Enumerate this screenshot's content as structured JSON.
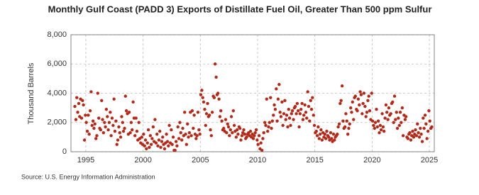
{
  "chart_data": {
    "type": "scatter",
    "title": "Monthly Gulf Coast (PADD 3) Exports of Distillate Fuel Oil, Greater Than 500 ppm Sulfur",
    "y_label": "Thousand Barrels",
    "source": "Source: U.S. Energy Information Administration",
    "color": "#b22a1a",
    "grid": true,
    "xlim": [
      1993.7,
      2025.43
    ],
    "ylim": [
      0,
      8000
    ],
    "xticks": [
      1995,
      2000,
      2005,
      2010,
      2015,
      2020,
      2025
    ],
    "yticks": [
      0,
      {
        "value": 2000,
        "label": "2,000"
      },
      {
        "value": 4000,
        "label": "4,000"
      },
      {
        "value": 6000,
        "label": "6,000"
      },
      {
        "value": 8000,
        "label": "8,000"
      }
    ],
    "x": [
      1994.04,
      1994.13,
      1994.21,
      1994.29,
      1994.38,
      1994.46,
      1994.54,
      1994.63,
      1994.71,
      1994.79,
      1994.88,
      1994.96,
      1995.04,
      1995.13,
      1995.21,
      1995.29,
      1995.38,
      1995.46,
      1995.54,
      1995.63,
      1995.71,
      1995.79,
      1995.88,
      1995.96,
      1996.04,
      1996.13,
      1996.21,
      1996.29,
      1996.38,
      1996.46,
      1996.54,
      1996.63,
      1996.71,
      1996.79,
      1996.88,
      1996.96,
      1997.04,
      1997.13,
      1997.21,
      1997.29,
      1997.38,
      1997.46,
      1997.54,
      1997.63,
      1997.71,
      1997.79,
      1997.88,
      1997.96,
      1998.04,
      1998.13,
      1998.21,
      1998.29,
      1998.38,
      1998.46,
      1998.54,
      1998.63,
      1998.71,
      1998.79,
      1998.88,
      1998.96,
      1999.04,
      1999.13,
      1999.21,
      1999.29,
      1999.38,
      1999.46,
      1999.54,
      1999.63,
      1999.71,
      1999.79,
      1999.88,
      1999.96,
      2000.04,
      2000.13,
      2000.21,
      2000.29,
      2000.38,
      2000.46,
      2000.54,
      2000.63,
      2000.71,
      2000.79,
      2000.88,
      2000.96,
      2001.04,
      2001.13,
      2001.21,
      2001.29,
      2001.38,
      2001.46,
      2001.54,
      2001.63,
      2001.71,
      2001.79,
      2001.88,
      2001.96,
      2002.04,
      2002.13,
      2002.21,
      2002.29,
      2002.38,
      2002.46,
      2002.54,
      2002.63,
      2002.71,
      2002.79,
      2002.88,
      2002.96,
      2003.04,
      2003.13,
      2003.21,
      2003.29,
      2003.38,
      2003.46,
      2003.54,
      2003.63,
      2003.71,
      2003.79,
      2003.88,
      2003.96,
      2004.04,
      2004.13,
      2004.21,
      2004.29,
      2004.38,
      2004.46,
      2004.54,
      2004.63,
      2004.71,
      2004.79,
      2004.88,
      2004.96,
      2005.04,
      2005.13,
      2005.21,
      2005.29,
      2005.38,
      2005.46,
      2005.54,
      2005.63,
      2005.71,
      2005.79,
      2005.88,
      2005.96,
      2006.04,
      2006.13,
      2006.21,
      2006.29,
      2006.38,
      2006.46,
      2006.54,
      2006.63,
      2006.71,
      2006.79,
      2006.88,
      2006.96,
      2007.04,
      2007.13,
      2007.21,
      2007.29,
      2007.38,
      2007.46,
      2007.54,
      2007.63,
      2007.71,
      2007.79,
      2007.88,
      2007.96,
      2008.04,
      2008.13,
      2008.21,
      2008.29,
      2008.38,
      2008.46,
      2008.54,
      2008.63,
      2008.71,
      2008.79,
      2008.88,
      2008.96,
      2009.04,
      2009.13,
      2009.21,
      2009.29,
      2009.38,
      2009.46,
      2009.54,
      2009.63,
      2009.71,
      2009.79,
      2009.88,
      2009.96,
      2010.04,
      2010.13,
      2010.21,
      2010.29,
      2010.38,
      2010.46,
      2010.54,
      2010.63,
      2010.71,
      2010.79,
      2010.88,
      2010.96,
      2011.04,
      2011.13,
      2011.21,
      2011.29,
      2011.38,
      2011.46,
      2011.54,
      2011.63,
      2011.71,
      2011.79,
      2011.88,
      2011.96,
      2012.04,
      2012.13,
      2012.21,
      2012.29,
      2012.38,
      2012.46,
      2012.54,
      2012.63,
      2012.71,
      2012.79,
      2012.88,
      2012.96,
      2013.04,
      2013.13,
      2013.21,
      2013.29,
      2013.38,
      2013.46,
      2013.54,
      2013.63,
      2013.71,
      2013.79,
      2013.88,
      2013.96,
      2014.04,
      2014.13,
      2014.21,
      2014.29,
      2014.38,
      2014.46,
      2014.54,
      2014.63,
      2014.71,
      2014.79,
      2014.88,
      2014.96,
      2015.04,
      2015.13,
      2015.21,
      2015.29,
      2015.38,
      2015.46,
      2015.54,
      2015.63,
      2015.71,
      2015.79,
      2015.88,
      2015.96,
      2016.04,
      2016.13,
      2016.21,
      2016.29,
      2016.38,
      2016.46,
      2016.54,
      2016.63,
      2016.71,
      2016.79,
      2016.88,
      2016.96,
      2017.04,
      2017.13,
      2017.21,
      2017.29,
      2017.38,
      2017.46,
      2017.54,
      2017.63,
      2017.71,
      2017.79,
      2017.88,
      2017.96,
      2018.04,
      2018.13,
      2018.21,
      2018.29,
      2018.38,
      2018.46,
      2018.54,
      2018.63,
      2018.71,
      2018.79,
      2018.88,
      2018.96,
      2019.04,
      2019.13,
      2019.21,
      2019.29,
      2019.38,
      2019.46,
      2019.54,
      2019.63,
      2019.71,
      2019.79,
      2019.88,
      2019.96,
      2020.04,
      2020.13,
      2020.21,
      2020.29,
      2020.38,
      2020.46,
      2020.54,
      2020.63,
      2020.71,
      2020.79,
      2020.88,
      2020.96,
      2021.04,
      2021.13,
      2021.21,
      2021.29,
      2021.38,
      2021.46,
      2021.54,
      2021.63,
      2021.71,
      2021.79,
      2021.88,
      2021.96,
      2022.04,
      2022.13,
      2022.21,
      2022.29,
      2022.38,
      2022.46,
      2022.54,
      2022.63,
      2022.71,
      2022.79,
      2022.88,
      2022.96,
      2023.04,
      2023.13,
      2023.21,
      2023.29,
      2023.38,
      2023.46,
      2023.54,
      2023.63,
      2023.71,
      2023.79,
      2023.88,
      2023.96,
      2024.04,
      2024.13,
      2024.21,
      2024.29,
      2024.38,
      2024.46,
      2024.54,
      2024.63,
      2024.71,
      2024.79,
      2024.88,
      2024.96,
      2025.04,
      2025.13,
      2025.21
    ],
    "values": [
      3100,
      2200,
      3700,
      2700,
      3300,
      2400,
      3600,
      2300,
      3500,
      3200,
      800,
      2500,
      2000,
      1400,
      2500,
      1200,
      2800,
      4100,
      1800,
      2100,
      1600,
      1900,
      900,
      1100,
      4000,
      2300,
      1600,
      1500,
      3500,
      2200,
      1300,
      2000,
      1700,
      2900,
      2400,
      1500,
      2000,
      2700,
      1100,
      2300,
      1800,
      3600,
      1400,
      2100,
      500,
      800,
      1700,
      1300,
      1000,
      2400,
      2000,
      1400,
      1600,
      3800,
      2800,
      2600,
      1200,
      2700,
      1300,
      2000,
      1500,
      3400,
      2300,
      1100,
      2300,
      1400,
      800,
      2000,
      900,
      600,
      1000,
      500,
      1200,
      400,
      800,
      200,
      600,
      1500,
      300,
      1100,
      500,
      900,
      1700,
      700,
      2200,
      600,
      1200,
      400,
      800,
      1400,
      300,
      700,
      1000,
      500,
      200,
      600,
      1200,
      700,
      400,
      1800,
      600,
      1500,
      500,
      1000,
      100,
      100,
      700,
      400,
      1700,
      900,
      2000,
      1300,
      800,
      1600,
      1100,
      2700,
      1200,
      500,
      1900,
      1000,
      1300,
      2700,
      1100,
      2800,
      1600,
      2500,
      1200,
      900,
      1100,
      2700,
      1500,
      1200,
      3900,
      4200,
      3700,
      3400,
      2900,
      1800,
      2600,
      3300,
      2400,
      2500,
      1500,
      1100,
      2700,
      3800,
      3700,
      6000,
      5100,
      3900,
      4000,
      3600,
      2400,
      2800,
      2100,
      1500,
      1600,
      1400,
      2200,
      1300,
      1900,
      1700,
      1100,
      1500,
      2400,
      1300,
      2800,
      1800,
      1400,
      1000,
      1500,
      1200,
      1700,
      1600,
      800,
      1100,
      1300,
      1500,
      1200,
      900,
      1000,
      1200,
      1300,
      1100,
      1400,
      1000,
      1200,
      900,
      1100,
      1300,
      1500,
      800,
      500,
      1100,
      200,
      600,
      100,
      900,
      1300,
      2000,
      1800,
      3600,
      1400,
      1700,
      2000,
      3700,
      1600,
      2100,
      2500,
      3200,
      2900,
      4300,
      2100,
      3600,
      4600,
      2700,
      2400,
      3400,
      1800,
      2600,
      3500,
      2200,
      2500,
      1700,
      2900,
      2300,
      1800,
      2600,
      2800,
      2200,
      3000,
      3100,
      2600,
      3300,
      2800,
      1700,
      2600,
      2900,
      3300,
      2200,
      2500,
      3200,
      2700,
      2300,
      4100,
      3100,
      2100,
      3500,
      2900,
      3700,
      2500,
      1800,
      1300,
      1400,
      1100,
      1700,
      900,
      1200,
      1500,
      800,
      1300,
      1000,
      1200,
      900,
      1400,
      1100,
      1000,
      800,
      1300,
      900,
      700,
      1200,
      800,
      1000,
      1100,
      1200,
      1700,
      1900,
      3300,
      3500,
      4500,
      2100,
      1600,
      1700,
      2600,
      2100,
      1200,
      1600,
      1900,
      3000,
      2700,
      3400,
      2200,
      3700,
      3800,
      2900,
      2800,
      3600,
      3200,
      4100,
      3900,
      2600,
      3300,
      4000,
      3100,
      2400,
      2700,
      3500,
      3800,
      2800,
      2200,
      4000,
      2100,
      1800,
      1600,
      2000,
      2900,
      1700,
      2100,
      1300,
      1800,
      1500,
      2600,
      1700,
      1400,
      2300,
      3200,
      2700,
      2200,
      3000,
      2500,
      2600,
      3300,
      3400,
      2000,
      3800,
      2200,
      2700,
      1600,
      2300,
      1800,
      2700,
      2000,
      3000,
      1100,
      2500,
      2200,
      2400,
      1000,
      900,
      1200,
      1300,
      800,
      1100,
      1400,
      1000,
      1200,
      1500,
      1100,
      1900,
      1300,
      1000,
      1600,
      1200,
      700,
      2300,
      1600,
      2500,
      1900,
      900,
      1400,
      2800,
      2100,
      1600,
      1700
    ]
  }
}
